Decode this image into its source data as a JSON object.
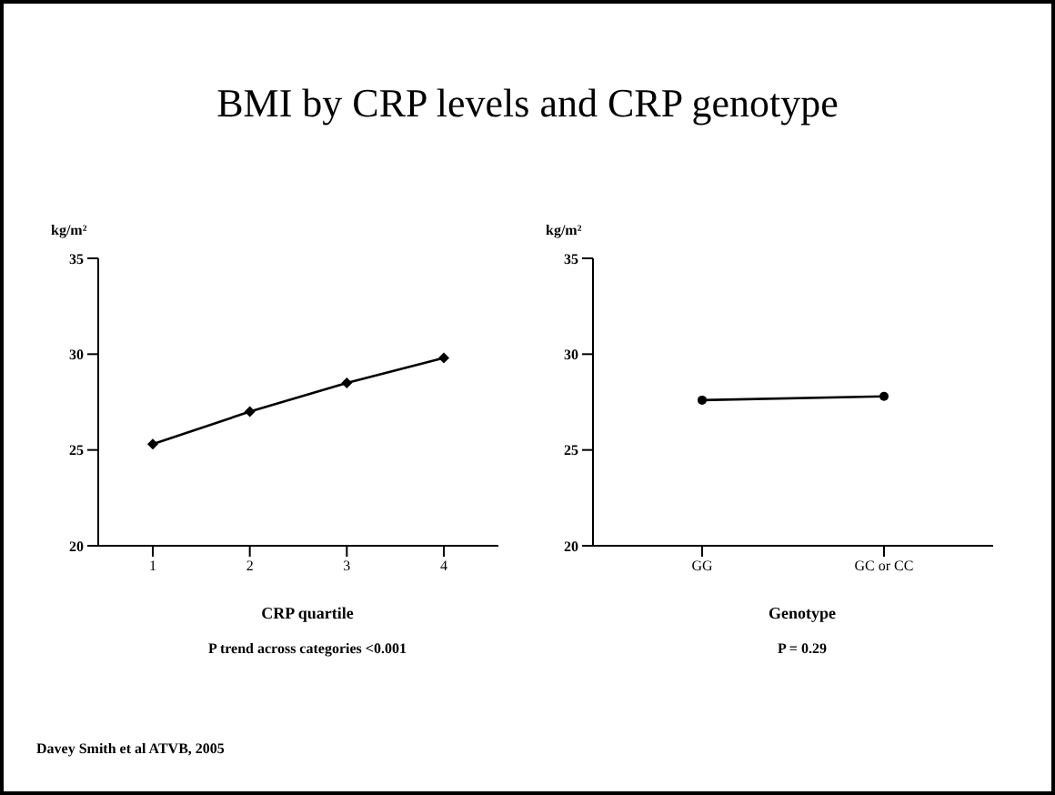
{
  "chart_data": [
    {
      "type": "line",
      "title": "BMI by CRP levels and CRP genotype",
      "ylabel": "kg/m²",
      "xlabel": "CRP quartile",
      "categories": [
        "1",
        "2",
        "3",
        "4"
      ],
      "series": [
        {
          "color": "#000000",
          "values": [
            25.3,
            27.0,
            28.5,
            29.8
          ]
        }
      ],
      "ylim": [
        20,
        35
      ],
      "yticks": [
        20,
        25,
        30,
        35
      ],
      "marker": "diamond",
      "line_style": "solid",
      "grid": false,
      "legend": false,
      "annotations": [
        "P trend across categories <0.001",
        "Davey Smith et al ATVB, 2005"
      ]
    },
    {
      "type": "line",
      "ylabel": "kg/m²",
      "xlabel": "Genotype",
      "categories": [
        "GG",
        "GC or CC"
      ],
      "series": [
        {
          "color": "#000000",
          "values": [
            27.6,
            27.8
          ]
        }
      ],
      "ylim": [
        20,
        35
      ],
      "yticks": [
        20,
        25,
        30,
        35
      ],
      "marker": "circle",
      "line_style": "solid",
      "grid": false,
      "legend": false,
      "annotations": [
        "P = 0.29"
      ]
    }
  ]
}
